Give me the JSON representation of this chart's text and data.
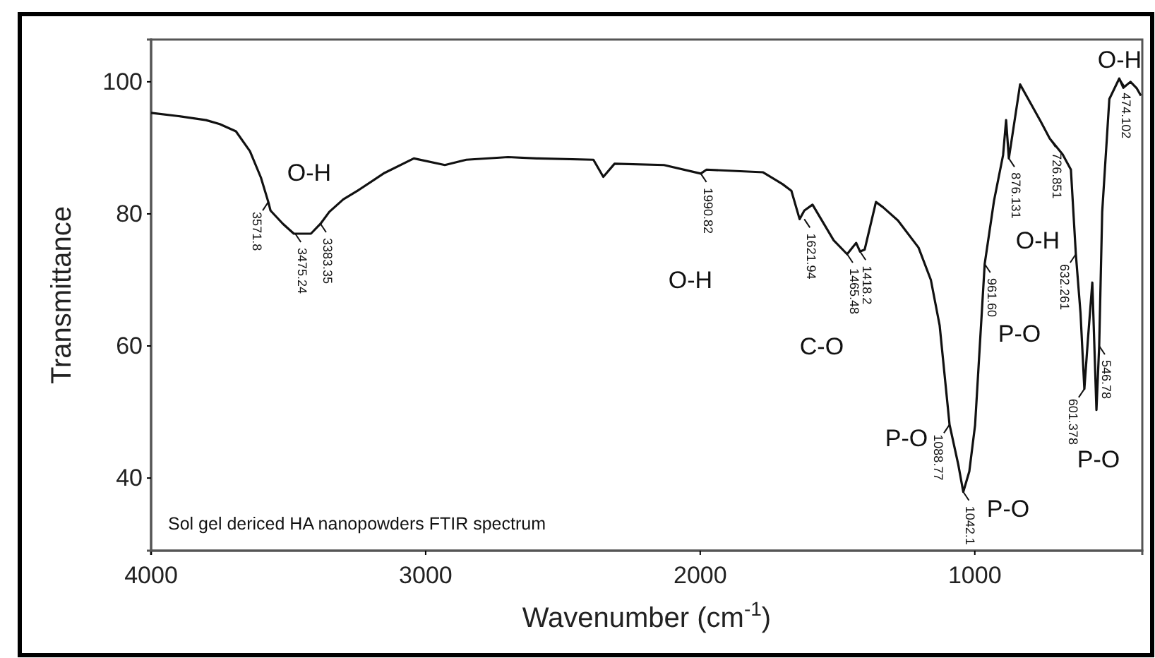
{
  "chart_data": {
    "type": "line",
    "xlabel": "Wavenumber (cm$^{-1}$)",
    "ylabel": "Transmittance",
    "xlim": [
      4000,
      390
    ],
    "ylim": [
      29,
      106.4
    ],
    "xticks": [
      4000,
      3000,
      2000,
      1000
    ],
    "yticks": [
      40,
      60,
      80,
      100
    ],
    "grid": false,
    "marker": "none",
    "line_style": "solid",
    "series": [
      {
        "color": "#111111",
        "x": [
          4000,
          3900,
          3800,
          3750,
          3691,
          3640,
          3600,
          3573,
          3565,
          3520,
          3480,
          3418,
          3383,
          3351,
          3300,
          3248,
          3150,
          3043,
          2930,
          2852,
          2700,
          2595,
          2389,
          2353,
          2312,
          2132,
          1998,
          1977,
          1771,
          1700,
          1668,
          1638,
          1621,
          1591,
          1514,
          1465,
          1432,
          1418,
          1401,
          1360,
          1334,
          1280,
          1205,
          1160,
          1128,
          1092,
          1060,
          1042,
          1020,
          999,
          964,
          930,
          897,
          886,
          876,
          835,
          800,
          760,
          727,
          680,
          650,
          632,
          615,
          601,
          588,
          572,
          557,
          547,
          536,
          510,
          474,
          459,
          433,
          410,
          395
        ],
        "values": [
          95.3,
          94.8,
          94.2,
          93.6,
          92.5,
          89.5,
          85.5,
          81.8,
          80.5,
          78.5,
          77,
          77,
          78.5,
          80.3,
          82.2,
          83.5,
          86.2,
          88.4,
          87.4,
          88.2,
          88.6,
          88.4,
          88.2,
          85.6,
          87.6,
          87.4,
          86.1,
          86.7,
          86.3,
          84.5,
          83.5,
          79.2,
          80.5,
          81.4,
          76,
          73.9,
          75.6,
          74.3,
          74.6,
          81.8,
          81,
          79,
          74.9,
          70,
          63.1,
          48.1,
          42,
          37.9,
          41,
          48,
          72.4,
          82,
          88.9,
          94.2,
          88.4,
          99.6,
          97,
          94,
          91.4,
          89,
          86.7,
          73.9,
          65,
          53.5,
          61,
          69.6,
          50.3,
          60,
          80.3,
          97.4,
          100.5,
          99.1,
          100,
          99,
          97.9
        ]
      }
    ],
    "annotations": [
      {
        "text": "3571.8",
        "x": 3573,
        "y": 81.8
      },
      {
        "text": "3475.24",
        "x": 3475,
        "y": 77
      },
      {
        "text": "3383.35",
        "x": 3383,
        "y": 78.5
      },
      {
        "text": "1990.82",
        "x": 1998,
        "y": 86.1
      },
      {
        "text": "1621.94",
        "x": 1621,
        "y": 79.2
      },
      {
        "text": "1465.48",
        "x": 1465,
        "y": 73.9
      },
      {
        "text": "1418.2",
        "x": 1418,
        "y": 74.3
      },
      {
        "text": "1088.77",
        "x": 1092,
        "y": 48.1
      },
      {
        "text": "1042.1",
        "x": 1042,
        "y": 37.9
      },
      {
        "text": "961.60",
        "x": 964,
        "y": 72.4
      },
      {
        "text": "876.131",
        "x": 876,
        "y": 88.4
      },
      {
        "text": "726.851",
        "x": 727,
        "y": 91.4
      },
      {
        "text": "632.261",
        "x": 632,
        "y": 73.9
      },
      {
        "text": "601.378",
        "x": 601,
        "y": 53.5
      },
      {
        "text": "546.78",
        "x": 547,
        "y": 60
      },
      {
        "text": "474.102",
        "x": 474,
        "y": 100.5
      },
      "O-H",
      "O-H",
      "C-O",
      "P-O",
      "P-O",
      "P-O",
      "O-H",
      "P-O",
      "O-H",
      "Sol gel dericed HA nanopowders FTIR spectrum"
    ]
  }
}
